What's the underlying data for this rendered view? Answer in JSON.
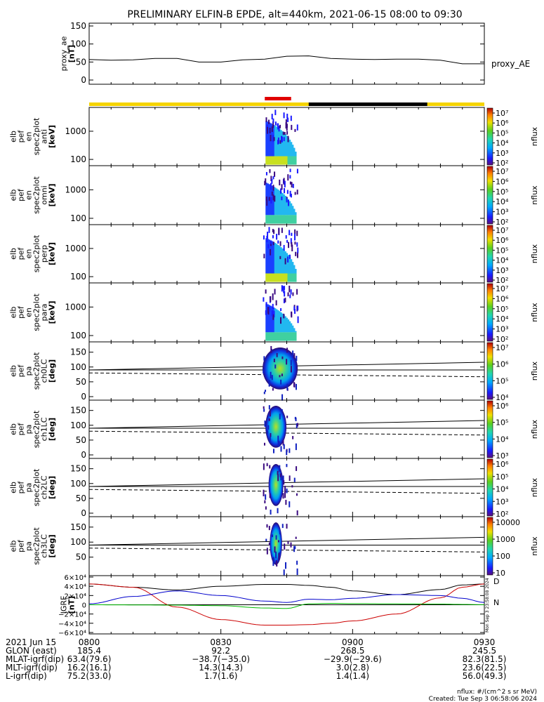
{
  "title": "PRELIMINARY ELFIN-B EPDE, alt=440km, 2021-06-15 08:00 to 09:30",
  "colors": {
    "axis": "#000000",
    "bar_sunlit": "#f5d300",
    "bar_eclipse": "#000000",
    "bar_science": "#e00000",
    "bx": "#0000cc",
    "by": "#00bb00",
    "bz": "#cc0000",
    "btot": "#000000"
  },
  "panels": [
    {
      "id": "ae",
      "ylabel": [
        "proxy_ae",
        "[nT]"
      ],
      "ticks": [
        "150",
        "100",
        "50",
        "0"
      ],
      "side_label": "proxy_AE"
    },
    {
      "id": "en-anti",
      "ylabel": [
        "elb",
        "pef",
        "en",
        "spec2plot",
        "anti",
        "[keV]"
      ],
      "ticks": [
        "1000",
        "100"
      ],
      "cb_ticks": [
        "10⁷",
        "10⁶",
        "10⁵",
        "10⁴",
        "10³",
        "10²"
      ],
      "cb_label": "nflux"
    },
    {
      "id": "en-omni",
      "ylabel": [
        "elb",
        "pef",
        "en",
        "spec2plot",
        "omni",
        "[keV]"
      ],
      "ticks": [
        "1000",
        "100"
      ],
      "cb_ticks": [
        "10⁷",
        "10⁶",
        "10⁵",
        "10⁴",
        "10³",
        "10²"
      ],
      "cb_label": "nflux"
    },
    {
      "id": "en-perp",
      "ylabel": [
        "elb",
        "pef",
        "en",
        "spec2plot",
        "perp",
        "[keV]"
      ],
      "ticks": [
        "1000",
        "100"
      ],
      "cb_ticks": [
        "10⁷",
        "10⁶",
        "10⁵",
        "10⁴",
        "10³",
        "10²"
      ],
      "cb_label": "nflux"
    },
    {
      "id": "en-para",
      "ylabel": [
        "elb",
        "pef",
        "en",
        "spec2plot",
        "para",
        "[keV]"
      ],
      "ticks": [
        "1000",
        "100"
      ],
      "cb_ticks": [
        "10⁷",
        "10⁶",
        "10⁵",
        "10⁴",
        "10³",
        "10²"
      ],
      "cb_label": "nflux"
    },
    {
      "id": "pa-ch0",
      "ylabel": [
        "elb",
        "pef",
        "pa",
        "spec2plot",
        "ch0LC",
        "[deg]"
      ],
      "ticks": [
        "150",
        "100",
        "50",
        "0"
      ],
      "cb_ticks": [
        "10⁷",
        "10⁶",
        "10⁵",
        "10⁴"
      ],
      "cb_label": "nflux"
    },
    {
      "id": "pa-ch1",
      "ylabel": [
        "elb",
        "pef",
        "pa",
        "spec2plot",
        "ch1LC",
        "[deg]"
      ],
      "ticks": [
        "150",
        "100",
        "50",
        "0"
      ],
      "cb_ticks": [
        "10⁶",
        "10⁵",
        "10⁴",
        "10³"
      ],
      "cb_label": "nflux"
    },
    {
      "id": "pa-ch2",
      "ylabel": [
        "elb",
        "pef",
        "pa",
        "spec2plot",
        "ch2LC",
        "[deg]"
      ],
      "ticks": [
        "150",
        "100",
        "50",
        "0"
      ],
      "cb_ticks": [
        "10⁶",
        "10⁵",
        "10⁴",
        "10³",
        "10²"
      ],
      "cb_label": "nflux"
    },
    {
      "id": "pa-ch3",
      "ylabel": [
        "elb",
        "pef",
        "pa",
        "spec2plot",
        "ch3LC",
        "[deg]"
      ],
      "ticks": [
        "150",
        "100",
        "50"
      ],
      "cb_ticks": [
        "10000",
        "1000",
        "100",
        "10"
      ],
      "cb_label": "nflux"
    },
    {
      "id": "igrf",
      "ylabel": [
        "IGRF",
        "[nT]"
      ],
      "ticks": [
        "6×10⁴",
        "4×10⁴",
        "2×10⁴",
        "0",
        "−2×10⁴",
        "−4×10⁴",
        "−6×10⁴"
      ],
      "legend": [
        "D",
        "N"
      ],
      "side_stamp": "Mon Sep  3 23:58:08 2024"
    }
  ],
  "chart_data": {
    "type": "spectrogram-stack",
    "x_range": [
      "08:00",
      "09:30"
    ],
    "energy_ylim_keV": [
      60,
      7000
    ],
    "pitch_angle_ylim_deg": [
      0,
      180
    ],
    "ae_ylim_nT": [
      0,
      150
    ],
    "ae": {
      "x_min": [
        0,
        5,
        10,
        15,
        20,
        25,
        30,
        35,
        40,
        45,
        50,
        55,
        60,
        65,
        70,
        75,
        80,
        85,
        90
      ],
      "values": [
        57,
        55,
        56,
        60,
        60,
        50,
        50,
        56,
        58,
        66,
        67,
        60,
        58,
        57,
        58,
        58,
        55,
        45,
        45
      ]
    },
    "science_zone_min": [
      40,
      46
    ],
    "eclipse_min": [
      50,
      77
    ],
    "spectra_window_min": [
      39.5,
      47.5
    ],
    "loss_cone_deg": {
      "x_min": [
        0,
        90
      ],
      "upper": [
        90,
        116
      ],
      "lower": [
        80,
        67
      ]
    },
    "igrf_ylim": [
      -60000,
      60000
    ],
    "igrf": {
      "x_min": [
        0,
        10,
        20,
        30,
        40,
        45,
        50,
        55,
        60,
        70,
        80,
        85,
        90
      ],
      "series": [
        {
          "key": "btot",
          "values": [
            45000,
            38000,
            32000,
            40000,
            44000,
            44000,
            42000,
            38000,
            30000,
            22000,
            33000,
            43000,
            45000
          ]
        },
        {
          "key": "bz",
          "values": [
            45000,
            38000,
            -5000,
            -32000,
            -44000,
            -44000,
            -43000,
            -40000,
            -35000,
            -20000,
            15000,
            38000,
            45000
          ]
        },
        {
          "key": "bx",
          "values": [
            2000,
            18000,
            30000,
            20000,
            8000,
            5000,
            12000,
            11000,
            14000,
            22000,
            20000,
            14000,
            5000
          ]
        },
        {
          "key": "by",
          "values": [
            0,
            -300,
            -800,
            -2000,
            -7000,
            -8000,
            2000,
            3000,
            2500,
            2000,
            1500,
            800,
            200
          ]
        }
      ]
    }
  },
  "footer": {
    "rows": [
      {
        "label": "2021 Jun 15",
        "values": [
          "0800",
          "0830",
          "0900",
          "0930"
        ]
      },
      {
        "label": "GLON (east)",
        "values": [
          "185.4",
          "92.2",
          "268.5",
          "245.5"
        ]
      },
      {
        "label": "MLAT-igrf(dip)",
        "values": [
          "63.4(79.6)",
          "−38.7(−35.0)",
          "−29.9(−29.6)",
          "82.3(81.5)"
        ]
      },
      {
        "label": "MLT-igrf(dip)",
        "values": [
          "16.2(16.1)",
          "14.3(14.3)",
          "3.0(2.8)",
          "23.6(22.5)"
        ]
      },
      {
        "label": "L-igrf(dip)",
        "values": [
          "75.2(33.0)",
          "1.7(1.6)",
          "1.4(1.4)",
          "56.0(49.3)"
        ]
      }
    ],
    "units_note": "nflux: #/(cm^2 s sr MeV)",
    "created": "Created: Tue Sep  3 06:58:06 2024"
  }
}
